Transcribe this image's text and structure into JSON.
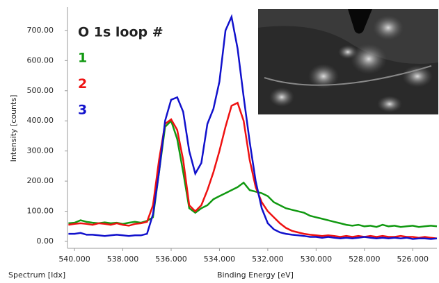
{
  "chart_data": {
    "type": "line",
    "x_label": "Binding Energy [eV]",
    "y_label": "Intensity [counts]",
    "footnote": "Spectrum [Idx]",
    "legend_title": "O 1s loop #",
    "x": [
      540.25,
      540,
      539.75,
      539.5,
      539.25,
      539,
      538.75,
      538.5,
      538.25,
      538,
      537.75,
      537.5,
      537.25,
      537,
      536.75,
      536.5,
      536.25,
      536,
      535.75,
      535.5,
      535.25,
      535,
      534.75,
      534.5,
      534.25,
      534,
      533.75,
      533.5,
      533.25,
      533,
      532.75,
      532.5,
      532.25,
      532,
      531.75,
      531.5,
      531.25,
      531,
      530.75,
      530.5,
      530.25,
      530,
      529.75,
      529.5,
      529.25,
      529,
      528.75,
      528.5,
      528.25,
      528,
      527.75,
      527.5,
      527.25,
      527,
      526.75,
      526.5,
      526.25,
      526,
      525.75,
      525.5,
      525.25,
      525
    ],
    "series": [
      {
        "name": "1",
        "color": "#119911",
        "values": [
          60,
          62,
          70,
          65,
          62,
          60,
          63,
          60,
          62,
          58,
          62,
          65,
          62,
          68,
          80,
          230,
          380,
          400,
          340,
          230,
          110,
          95,
          110,
          120,
          140,
          150,
          160,
          170,
          180,
          195,
          170,
          165,
          160,
          150,
          130,
          120,
          110,
          105,
          100,
          95,
          85,
          80,
          75,
          70,
          65,
          60,
          55,
          52,
          55,
          50,
          52,
          48,
          55,
          50,
          52,
          48,
          50,
          52,
          48,
          50,
          52,
          50
        ]
      },
      {
        "name": "2",
        "color": "#ee1111",
        "values": [
          55,
          58,
          60,
          58,
          55,
          60,
          58,
          55,
          60,
          55,
          52,
          58,
          60,
          65,
          120,
          270,
          390,
          405,
          370,
          270,
          120,
          100,
          120,
          170,
          230,
          300,
          380,
          450,
          460,
          400,
          270,
          180,
          130,
          100,
          80,
          60,
          45,
          35,
          30,
          25,
          22,
          20,
          18,
          20,
          18,
          15,
          18,
          15,
          18,
          15,
          18,
          15,
          18,
          15,
          15,
          18,
          15,
          15,
          12,
          15,
          12,
          10
        ]
      },
      {
        "name": "3",
        "color": "#1111cc",
        "values": [
          25,
          25,
          28,
          22,
          22,
          20,
          18,
          20,
          22,
          20,
          18,
          20,
          20,
          25,
          90,
          230,
          400,
          470,
          478,
          430,
          300,
          225,
          260,
          390,
          440,
          530,
          700,
          745,
          640,
          480,
          330,
          200,
          110,
          60,
          40,
          30,
          25,
          22,
          20,
          18,
          15,
          15,
          12,
          15,
          12,
          10,
          12,
          10,
          12,
          15,
          12,
          10,
          12,
          10,
          12,
          10,
          12,
          8,
          10,
          10,
          8,
          10
        ]
      }
    ],
    "xlim": [
      540.29,
      525.0
    ],
    "ylim": [
      -23,
      778
    ],
    "xticks": [
      {
        "value": 540,
        "label": "540.000"
      },
      {
        "value": 538,
        "label": "538.000"
      },
      {
        "value": 536,
        "label": "536.000"
      },
      {
        "value": 534,
        "label": "534.000"
      },
      {
        "value": 532,
        "label": "532.000"
      },
      {
        "value": 530,
        "label": "530.000"
      },
      {
        "value": 528,
        "label": "528.000"
      },
      {
        "value": 526,
        "label": "526.000"
      }
    ],
    "yticks": [
      {
        "value": 0,
        "label": "0.00"
      },
      {
        "value": 100,
        "label": "100.00"
      },
      {
        "value": 200,
        "label": "200.00"
      },
      {
        "value": 300,
        "label": "300.00"
      },
      {
        "value": 400,
        "label": "400.00"
      },
      {
        "value": 500,
        "label": "500.00"
      },
      {
        "value": 600,
        "label": "600.00"
      },
      {
        "value": 700,
        "label": "700.00"
      }
    ]
  }
}
